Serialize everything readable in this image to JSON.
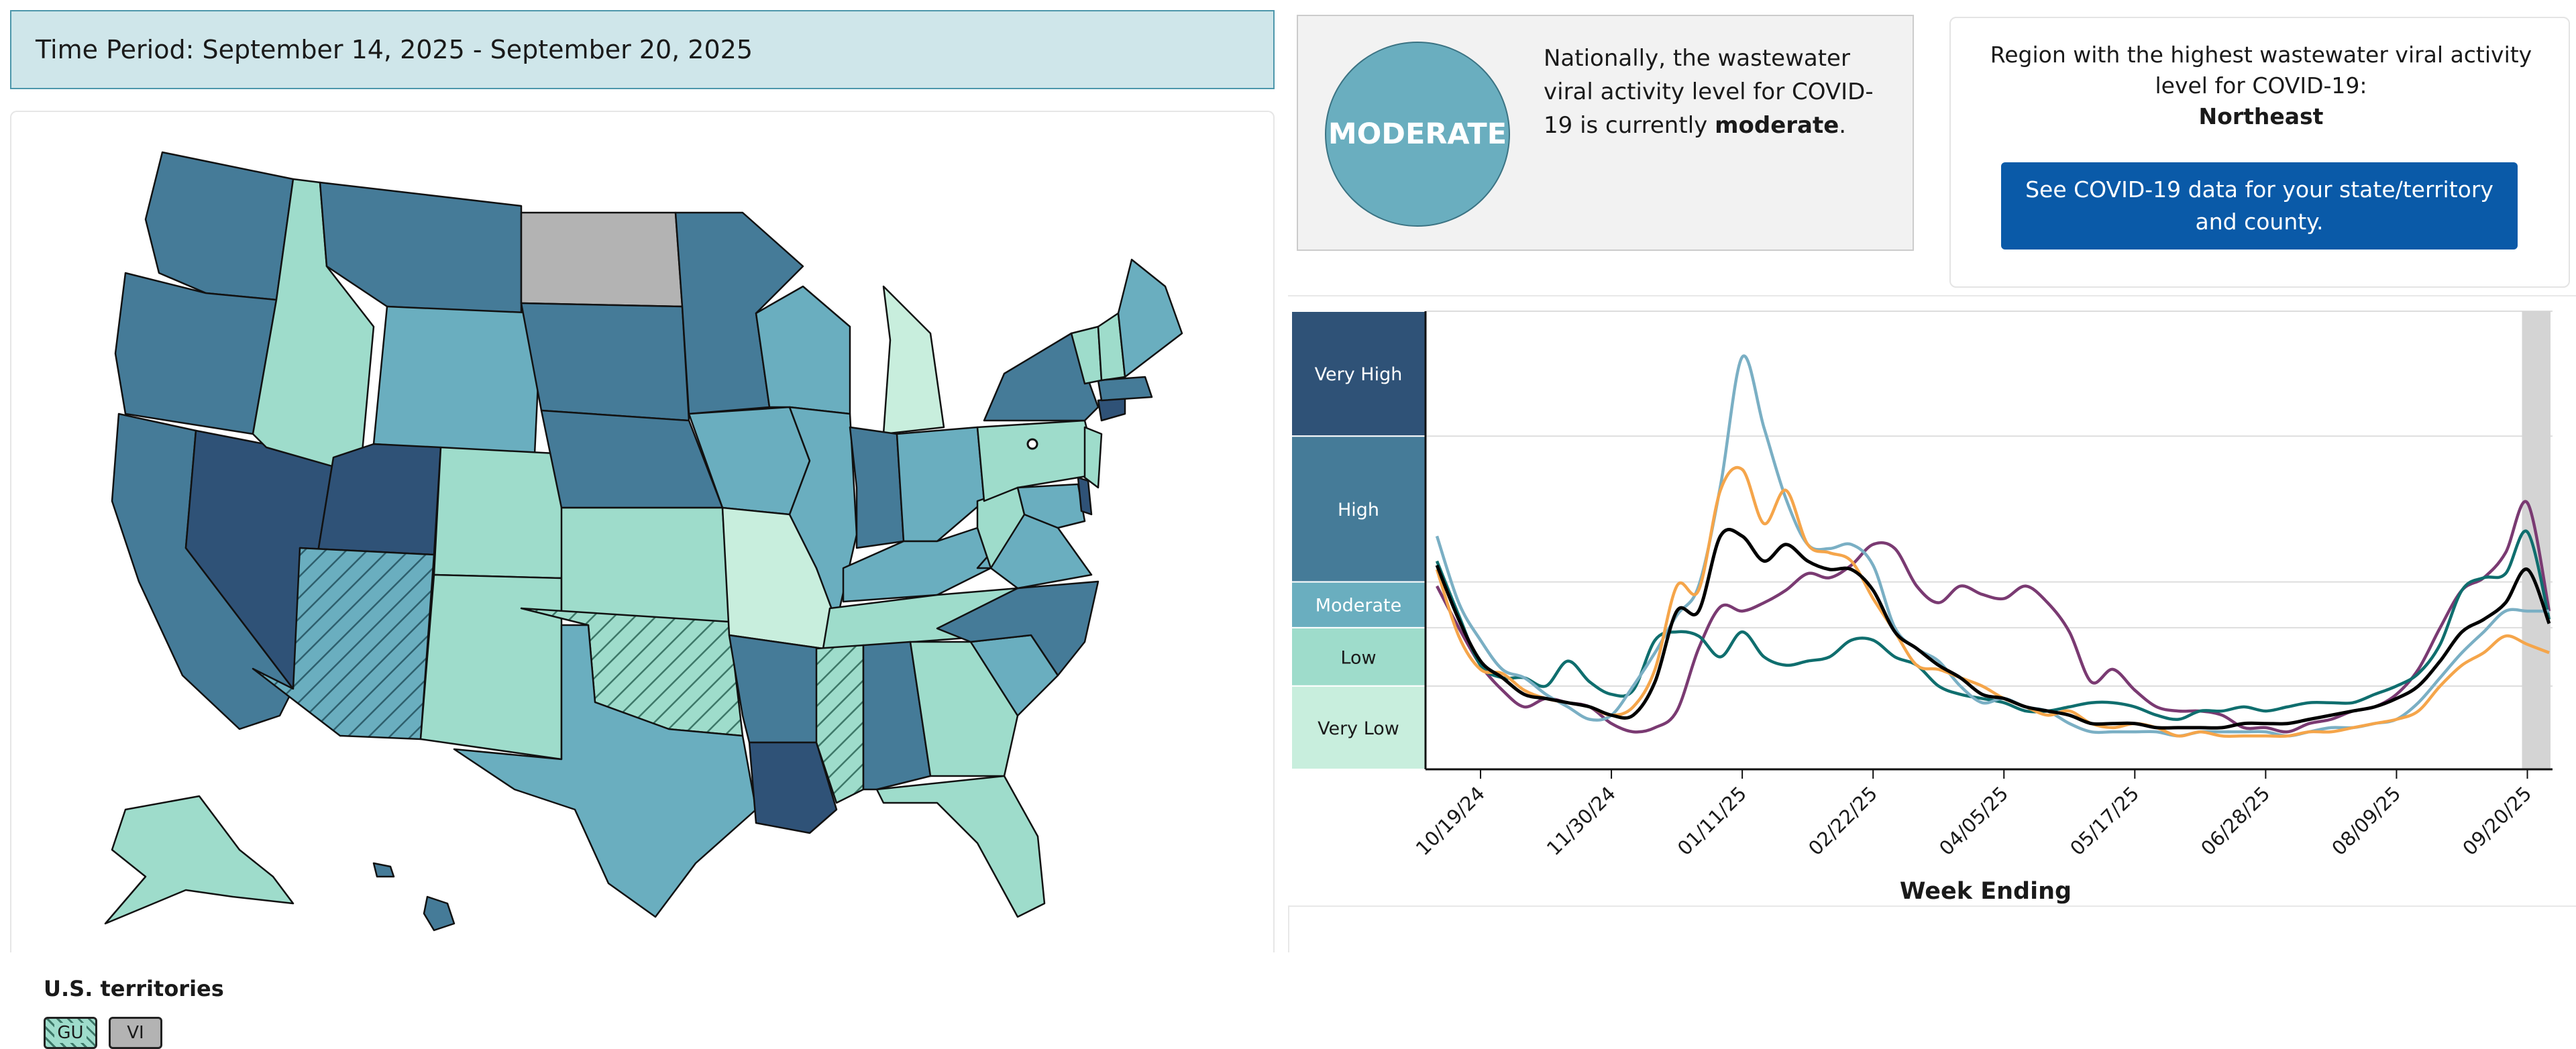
{
  "header": {
    "time_period": "Time Period: September 14, 2025 - September 20, 2025"
  },
  "map": {
    "territories_title": "U.S. territories",
    "territories": [
      {
        "label": "GU",
        "level": "Low",
        "hatched": true
      },
      {
        "label": "VI",
        "level": "No Data",
        "hatched": false
      }
    ]
  },
  "summary": {
    "level_badge": "MODERATE",
    "text_prefix": "Nationally, the wastewater viral activity level for COVID-19 is currently",
    "text_level": "moderate",
    "text_suffix": "."
  },
  "region": {
    "text": "Region with the highest wastewater viral activity level for COVID-19:",
    "name": "Northeast",
    "button_label": "See COVID-19 data for your state/territory and county."
  },
  "colors": {
    "very_high": "#2f5277",
    "high": "#457b98",
    "moderate": "#6aaebf",
    "low": "#9edccb",
    "very_low": "#c8eedd",
    "no_data": "#b3b3b3",
    "button": "#0a5aa8",
    "national": "#000000",
    "midwest": "#7a3a72",
    "northeast": "#0f6e6e",
    "south": "#7aafc4",
    "west": "#f5a54a"
  },
  "chart_data": {
    "type": "line",
    "xlabel": "Week Ending",
    "ylabel": "",
    "x_tick_labels": [
      "10/19/24",
      "11/30/24",
      "01/11/25",
      "02/22/25",
      "04/05/25",
      "05/17/25",
      "06/28/25",
      "08/09/25",
      "09/20/25"
    ],
    "levels": [
      "Very High",
      "High",
      "Moderate",
      "Low",
      "Very Low"
    ],
    "level_bounds": [
      0,
      2,
      3.4,
      4.5,
      8,
      11
    ],
    "ylim": [
      0,
      11
    ],
    "highlight_week_index": 50,
    "weeks": 52,
    "series": [
      {
        "color_key": "midwest",
        "values": [
          4.4,
          3.4,
          2.5,
          1.9,
          1.5,
          1.7,
          1.6,
          1.5,
          1.1,
          0.9,
          1.0,
          1.4,
          2.9,
          3.9,
          3.8,
          4.0,
          4.3,
          4.7,
          4.6,
          4.9,
          5.4,
          5.3,
          4.4,
          4.0,
          4.4,
          4.2,
          4.1,
          4.4,
          4.0,
          3.3,
          2.1,
          2.4,
          1.9,
          1.5,
          1.4,
          1.4,
          1.3,
          1.0,
          1.0,
          0.9,
          1.1,
          1.2,
          1.4,
          1.5,
          1.8,
          2.4,
          3.4,
          4.3,
          4.6,
          5.2,
          6.4,
          3.8
        ]
      },
      {
        "color_key": "northeast",
        "values": [
          5.0,
          3.7,
          2.5,
          2.2,
          2.2,
          2.0,
          2.6,
          2.1,
          1.8,
          1.9,
          3.1,
          3.3,
          3.2,
          2.7,
          3.3,
          2.7,
          2.5,
          2.6,
          2.7,
          3.1,
          3.1,
          2.7,
          2.5,
          2.0,
          1.8,
          1.7,
          1.6,
          1.4,
          1.4,
          1.5,
          1.6,
          1.6,
          1.5,
          1.3,
          1.2,
          1.4,
          1.4,
          1.5,
          1.4,
          1.5,
          1.6,
          1.6,
          1.6,
          1.8,
          2.0,
          2.3,
          3.0,
          4.3,
          4.6,
          4.7,
          5.7,
          3.6
        ]
      },
      {
        "color_key": "south",
        "values": [
          5.6,
          4.0,
          3.1,
          2.4,
          2.2,
          1.8,
          1.5,
          1.2,
          1.3,
          2.0,
          2.8,
          3.7,
          4.4,
          6.8,
          9.9,
          8.2,
          6.5,
          5.4,
          5.3,
          5.4,
          4.9,
          3.4,
          2.9,
          2.6,
          2.0,
          1.6,
          1.7,
          1.5,
          1.4,
          1.1,
          0.9,
          0.9,
          0.9,
          0.9,
          0.8,
          0.9,
          0.9,
          0.9,
          0.9,
          0.8,
          0.9,
          1.0,
          1.0,
          1.1,
          1.2,
          1.6,
          2.2,
          2.8,
          3.3,
          3.8,
          3.8,
          3.8
        ]
      },
      {
        "color_key": "west",
        "values": [
          4.8,
          3.2,
          2.4,
          2.3,
          1.9,
          1.7,
          1.6,
          1.5,
          1.3,
          1.5,
          2.4,
          4.4,
          4.3,
          6.7,
          7.2,
          5.9,
          6.7,
          5.4,
          5.2,
          5.0,
          4.1,
          3.3,
          2.5,
          2.4,
          2.2,
          2.0,
          1.7,
          1.5,
          1.3,
          1.4,
          1.1,
          1.0,
          1.1,
          1.0,
          0.8,
          0.9,
          0.8,
          0.8,
          0.8,
          0.8,
          0.9,
          0.9,
          1.0,
          1.1,
          1.2,
          1.4,
          2.0,
          2.5,
          2.8,
          3.2,
          3.0,
          2.8
        ]
      },
      {
        "color_key": "national",
        "values": [
          4.9,
          3.6,
          2.6,
          2.2,
          1.8,
          1.7,
          1.6,
          1.5,
          1.3,
          1.3,
          2.1,
          3.8,
          3.8,
          5.6,
          5.6,
          5.0,
          5.4,
          5.0,
          4.8,
          4.8,
          4.3,
          3.3,
          2.9,
          2.5,
          2.2,
          1.8,
          1.7,
          1.5,
          1.4,
          1.3,
          1.1,
          1.1,
          1.1,
          1.0,
          1.0,
          1.0,
          1.0,
          1.1,
          1.1,
          1.1,
          1.2,
          1.3,
          1.4,
          1.5,
          1.7,
          2.0,
          2.6,
          3.3,
          3.6,
          4.0,
          4.8,
          3.5
        ]
      }
    ]
  }
}
